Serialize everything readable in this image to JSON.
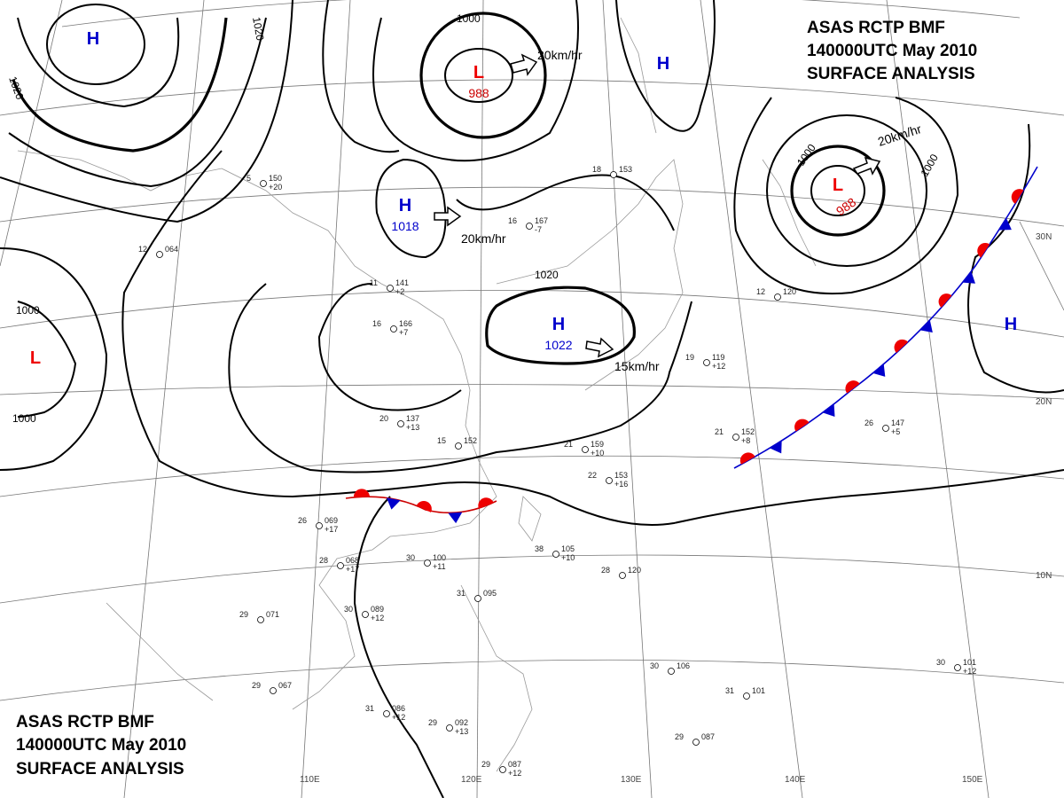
{
  "header": {
    "lines": [
      "ASAS RCTP BMF",
      "140000UTC May 2010",
      "SURFACE ANALYSIS"
    ]
  },
  "pressure_centers": [
    {
      "label": "H"
    },
    {
      "label": "L",
      "value": "988"
    },
    {
      "label": "H"
    },
    {
      "label": "L",
      "value": "988"
    },
    {
      "label": "H",
      "value": "1018"
    },
    {
      "label": "H",
      "value": "1022"
    },
    {
      "label": "L"
    },
    {
      "label": "H"
    }
  ],
  "motion_labels": [
    "20km/hr",
    "20km/hr",
    "20km/hr",
    "15km/hr"
  ],
  "isobar_labels": [
    "1000",
    "1020",
    "1020",
    "1000",
    "1020",
    "1000",
    "1000",
    "1000"
  ],
  "graticule": {
    "longitudes": [
      "110E",
      "120E",
      "130E",
      "140E",
      "150E"
    ],
    "latitudes": [
      "30N",
      "20N",
      "10N"
    ]
  },
  "stations": [
    [
      "26",
      "069",
      "+17"
    ],
    [
      "28",
      "068",
      "+17"
    ],
    [
      "30",
      "100",
      "+11"
    ],
    [
      "30",
      "089",
      "+12"
    ],
    [
      "29",
      "071"
    ],
    [
      "29",
      "067"
    ],
    [
      "31",
      "086",
      "+12"
    ],
    [
      "29",
      "092",
      "+13"
    ],
    [
      "29",
      "087",
      "+12"
    ],
    [
      "31",
      "095"
    ],
    [
      "38",
      "105",
      "+10"
    ],
    [
      "28",
      "120"
    ],
    [
      "30",
      "106"
    ],
    [
      "31",
      "101"
    ],
    [
      "29",
      "087"
    ],
    [
      "30",
      "101",
      "+12"
    ],
    [
      "21",
      "152",
      "+8"
    ],
    [
      "26",
      "147",
      "+5"
    ],
    [
      "21",
      "159",
      "+10"
    ],
    [
      "22",
      "153",
      "+16"
    ],
    [
      "20",
      "137",
      "+13"
    ],
    [
      "15",
      "152"
    ],
    [
      "16",
      "166",
      "+7"
    ],
    [
      "11",
      "141",
      "+2"
    ],
    [
      "12",
      "120"
    ],
    [
      "19",
      "119",
      "+12"
    ],
    [
      "16",
      "167",
      "-7"
    ],
    [
      "18",
      "153"
    ],
    [
      "5",
      "150",
      "+20"
    ],
    [
      "12",
      "064"
    ]
  ]
}
